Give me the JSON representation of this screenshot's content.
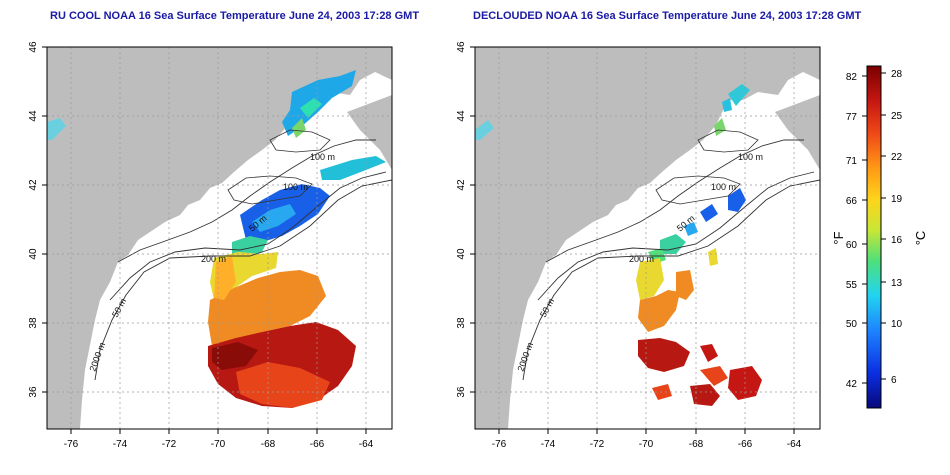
{
  "left_map": {
    "title": "RU COOL NOAA 16 Sea Surface Temperature June 24, 2003 17:28 GMT",
    "lon_ticks": [
      "-76",
      "-74",
      "-72",
      "-70",
      "-68",
      "-66",
      "-64"
    ],
    "lat_ticks": [
      "46",
      "44",
      "42",
      "40",
      "38",
      "36"
    ],
    "contours": [
      "100 m",
      "100 m",
      "50 m",
      "200 m",
      "50 m",
      "2000 m"
    ]
  },
  "right_map": {
    "title": "DECLOUDED NOAA 16 Sea Surface Temperature June 24, 2003 17:28 GMT",
    "lon_ticks": [
      "-76",
      "-74",
      "-72",
      "-70",
      "-68",
      "-66",
      "-64"
    ],
    "lat_ticks": [
      "46",
      "44",
      "42",
      "40",
      "38",
      "36"
    ],
    "contours": [
      "100 m",
      "100 m",
      "50 m",
      "200 m",
      "50 m",
      "2000 m"
    ]
  },
  "colorbar": {
    "f_label": "°F",
    "c_label": "°C",
    "f_ticks": [
      "82",
      "77",
      "71",
      "66",
      "60",
      "55",
      "50",
      "42"
    ],
    "c_ticks": [
      "28",
      "25",
      "22",
      "19",
      "16",
      "13",
      "10",
      "6"
    ],
    "colors": [
      "#08087a",
      "#0a2ee0",
      "#1c7fff",
      "#22d4f0",
      "#4ee07a",
      "#c8e636",
      "#ffd41a",
      "#ff9a16",
      "#f04a18",
      "#c41612",
      "#7a0000"
    ]
  }
}
